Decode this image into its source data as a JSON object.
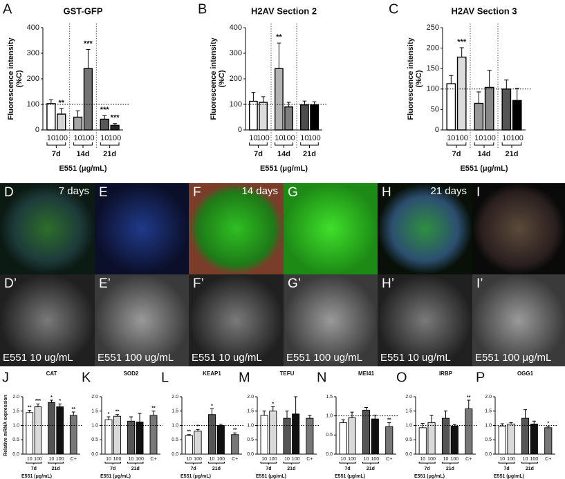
{
  "chart_data": [
    {
      "type": "bar",
      "panel": "A",
      "title": "GST-GFP",
      "ylabel": [
        "Fluorescence intensity",
        "(%C)"
      ],
      "xlabel": "E551 (μg/mL)",
      "ylim": [
        0,
        400
      ],
      "yticks": [
        0,
        100,
        200,
        300,
        400
      ],
      "reference_line": 100,
      "groups": [
        {
          "name": "7d",
          "categories": [
            "10",
            "100"
          ],
          "values": [
            103,
            62
          ],
          "errors": [
            15,
            22
          ],
          "colors": [
            "#ffffff",
            "#d4d4d4"
          ],
          "annotations": [
            null,
            "**"
          ]
        },
        {
          "name": "14d",
          "categories": [
            "10",
            "100"
          ],
          "values": [
            50,
            240
          ],
          "errors": [
            25,
            75
          ],
          "colors": [
            "#a6a6a6",
            "#737373"
          ],
          "annotations": [
            null,
            "***"
          ]
        },
        {
          "name": "21d",
          "categories": [
            "10",
            "100"
          ],
          "values": [
            42,
            18
          ],
          "errors": [
            14,
            7
          ],
          "colors": [
            "#595959",
            "#262626"
          ],
          "annotations": [
            "***",
            "***"
          ]
        }
      ]
    },
    {
      "type": "bar",
      "panel": "B",
      "title": "H2AV Section 2",
      "ylabel": [
        "Fluorescence intensity",
        "(%C)"
      ],
      "xlabel": "E551 (μg/mL)",
      "ylim": [
        0,
        400
      ],
      "yticks": [
        0,
        100,
        200,
        300,
        400
      ],
      "reference_line": 100,
      "groups": [
        {
          "name": "7d",
          "categories": [
            "10",
            "100"
          ],
          "values": [
            112,
            108
          ],
          "errors": [
            35,
            22
          ],
          "colors": [
            "#ffffff",
            "#dcdcdc"
          ]
        },
        {
          "name": "14d",
          "categories": [
            "10",
            "100"
          ],
          "values": [
            240,
            90
          ],
          "errors": [
            100,
            18
          ],
          "colors": [
            "#b3b3b3",
            "#808080"
          ],
          "annotations": [
            "**",
            null
          ]
        },
        {
          "name": "21d",
          "categories": [
            "10",
            "100"
          ],
          "values": [
            98,
            98
          ],
          "errors": [
            15,
            12
          ],
          "colors": [
            "#4d4d4d",
            "#000000"
          ]
        }
      ]
    },
    {
      "type": "bar",
      "panel": "C",
      "title": "H2AV Section 3",
      "ylabel": [
        "Fluorescence intensity",
        "(%C)"
      ],
      "xlabel": "E551 (μg/mL)",
      "ylim": [
        0,
        250
      ],
      "yticks": [
        0,
        50,
        100,
        150,
        200,
        250
      ],
      "reference_line": 100,
      "groups": [
        {
          "name": "7d",
          "categories": [
            "10",
            "100"
          ],
          "values": [
            113,
            178
          ],
          "errors": [
            20,
            23
          ],
          "colors": [
            "#ffffff",
            "#dcdcdc"
          ],
          "annotations": [
            null,
            "***"
          ]
        },
        {
          "name": "14d",
          "categories": [
            "10",
            "100"
          ],
          "values": [
            65,
            104
          ],
          "errors": [
            28,
            42
          ],
          "colors": [
            "#999999",
            "#888888"
          ]
        },
        {
          "name": "21d",
          "categories": [
            "10",
            "100"
          ],
          "values": [
            100,
            72
          ],
          "errors": [
            22,
            30
          ],
          "colors": [
            "#555555",
            "#000000"
          ]
        }
      ]
    },
    {
      "type": "bar",
      "panel": "J",
      "title": "CAT",
      "ylabel": [
        "Relative mRNA expression"
      ],
      "xlabel": "E551 (μg/mL)",
      "ylim": [
        0,
        2
      ],
      "yticks": [
        {
          "value": 0,
          "label": "0.0"
        },
        0.5,
        {
          "value": 1,
          "label": "1.0"
        },
        1.5,
        {
          "value": 2,
          "label": "2.0"
        }
      ],
      "reference_line": 1,
      "groups": [
        {
          "name": "7d",
          "categories": [
            "10",
            "100"
          ],
          "values": [
            1.45,
            1.65
          ],
          "errors": [
            0.08,
            0.1
          ],
          "colors": [
            "#ffffff",
            "#d9d9d9"
          ],
          "annotations": [
            "**",
            "***"
          ]
        },
        {
          "name": "21d",
          "categories": [
            "10",
            "100"
          ],
          "values": [
            1.8,
            1.65
          ],
          "errors": [
            0.08,
            0.1
          ],
          "colors": [
            "#555555",
            "#111111"
          ],
          "annotations": [
            "*",
            "*"
          ]
        },
        {
          "categories": [
            "C+"
          ],
          "values": [
            1.35
          ],
          "errors": [
            0.12
          ],
          "colors": [
            "#777777"
          ],
          "annotations": [
            "**"
          ]
        }
      ]
    },
    {
      "type": "bar",
      "panel": "K",
      "title": "SOD2",
      "xlabel": "E551 (μg/mL)",
      "ylim": [
        0,
        2
      ],
      "yticks": [
        {
          "value": 0,
          "label": "0.0"
        },
        0.5,
        {
          "value": 1,
          "label": "1.0"
        },
        1.5,
        {
          "value": 2,
          "label": "2.0"
        }
      ],
      "reference_line": 1,
      "groups": [
        {
          "name": "7d",
          "categories": [
            "10",
            "100"
          ],
          "values": [
            1.2,
            1.32
          ],
          "errors": [
            0.1,
            0.06
          ],
          "colors": [
            "#ffffff",
            "#d9d9d9"
          ],
          "annotations": [
            "*",
            "**"
          ]
        },
        {
          "name": "21d",
          "categories": [
            "10",
            "100"
          ],
          "values": [
            1.15,
            1.12
          ],
          "errors": [
            0.15,
            0.3
          ],
          "colors": [
            "#555555",
            "#111111"
          ]
        },
        {
          "categories": [
            "C+"
          ],
          "values": [
            1.35
          ],
          "errors": [
            0.15
          ],
          "colors": [
            "#777777"
          ],
          "annotations": [
            "**"
          ]
        }
      ]
    },
    {
      "type": "bar",
      "panel": "L",
      "title": "KEAP1",
      "xlabel": "E551 (μg/mL)",
      "ylim": [
        0,
        2
      ],
      "yticks": [
        {
          "value": 0,
          "label": "0.0"
        },
        0.5,
        {
          "value": 1,
          "label": "1.0"
        },
        1.5,
        {
          "value": 2,
          "label": "2.0"
        }
      ],
      "reference_line": 1,
      "groups": [
        {
          "name": "7d",
          "categories": [
            "10",
            "100"
          ],
          "values": [
            0.65,
            0.8
          ],
          "errors": [
            0.03,
            0.06
          ],
          "colors": [
            "#ffffff",
            "#d9d9d9"
          ],
          "annotations": [
            "**",
            "*"
          ]
        },
        {
          "name": "21d",
          "categories": [
            "10",
            "100"
          ],
          "values": [
            1.38,
            1.0
          ],
          "errors": [
            0.2,
            0.04
          ],
          "colors": [
            "#555555",
            "#111111"
          ],
          "annotations": [
            "*",
            null
          ]
        },
        {
          "categories": [
            "C+"
          ],
          "values": [
            0.68
          ],
          "errors": [
            0.06
          ],
          "colors": [
            "#777777"
          ],
          "annotations": [
            "**"
          ]
        }
      ]
    },
    {
      "type": "bar",
      "panel": "M",
      "title": "TEFU",
      "xlabel": "E551 (μg/mL)",
      "ylim": [
        0,
        2
      ],
      "yticks": [
        {
          "value": 0,
          "label": "0.0"
        },
        0.5,
        {
          "value": 1,
          "label": "1.0"
        },
        1.5,
        {
          "value": 2,
          "label": "2.0"
        }
      ],
      "reference_line": 1,
      "groups": [
        {
          "name": "7d",
          "categories": [
            "10",
            "100"
          ],
          "values": [
            1.35,
            1.5
          ],
          "errors": [
            0.15,
            0.15
          ],
          "colors": [
            "#ffffff",
            "#d9d9d9"
          ],
          "annotations": [
            null,
            "*"
          ]
        },
        {
          "name": "21d",
          "categories": [
            "10",
            "100"
          ],
          "values": [
            1.25,
            1.4
          ],
          "errors": [
            0.25,
            0.6
          ],
          "colors": [
            "#555555",
            "#111111"
          ]
        },
        {
          "categories": [
            "C+"
          ],
          "values": [
            1.25
          ],
          "errors": [
            0.1
          ],
          "colors": [
            "#777777"
          ]
        }
      ]
    },
    {
      "type": "bar",
      "panel": "N",
      "title": "MEI41",
      "xlabel": "E551 (μg/mL)",
      "ylim": [
        0,
        1.5
      ],
      "yticks": [
        {
          "value": 0,
          "label": "0.0"
        },
        0.5,
        {
          "value": 1,
          "label": "1.0"
        },
        1.5
      ],
      "reference_line": 1,
      "groups": [
        {
          "name": "7d",
          "categories": [
            "10",
            "100"
          ],
          "values": [
            0.82,
            0.95
          ],
          "errors": [
            0.08,
            0.15
          ],
          "colors": [
            "#ffffff",
            "#d9d9d9"
          ]
        },
        {
          "name": "21d",
          "categories": [
            "10",
            "100"
          ],
          "values": [
            1.15,
            0.92
          ],
          "errors": [
            0.07,
            0.1
          ],
          "colors": [
            "#555555",
            "#111111"
          ]
        },
        {
          "categories": [
            "C+"
          ],
          "values": [
            0.72
          ],
          "errors": [
            0.1
          ],
          "colors": [
            "#777777"
          ],
          "annotations": [
            "**"
          ]
        }
      ]
    },
    {
      "type": "bar",
      "panel": "O",
      "title": "IRBP",
      "xlabel": "E551 (μg/mL)",
      "ylim": [
        0,
        2
      ],
      "yticks": [
        {
          "value": 0,
          "label": "0.0"
        },
        0.5,
        {
          "value": 1,
          "label": "1.0"
        },
        1.5,
        {
          "value": 2,
          "label": "2.0"
        }
      ],
      "reference_line": 1,
      "groups": [
        {
          "name": "7d",
          "categories": [
            "10",
            "100"
          ],
          "values": [
            0.92,
            1.1
          ],
          "errors": [
            0.15,
            0.25
          ],
          "colors": [
            "#ffffff",
            "#d9d9d9"
          ]
        },
        {
          "name": "21d",
          "categories": [
            "10",
            "100"
          ],
          "values": [
            1.25,
            0.98
          ],
          "errors": [
            0.25,
            0.05
          ],
          "colors": [
            "#555555",
            "#111111"
          ]
        },
        {
          "categories": [
            "C+"
          ],
          "values": [
            1.58
          ],
          "errors": [
            0.3
          ],
          "colors": [
            "#777777"
          ],
          "annotations": [
            "**"
          ]
        }
      ]
    },
    {
      "type": "bar",
      "panel": "P",
      "title": "OGG1",
      "xlabel": "E551 (μg/mL)",
      "ylim": [
        0,
        2
      ],
      "yticks": [
        {
          "value": 0,
          "label": "0.0"
        },
        0.5,
        {
          "value": 1,
          "label": "1.0"
        },
        1.5,
        {
          "value": 2,
          "label": "2.0"
        }
      ],
      "reference_line": 1,
      "groups": [
        {
          "name": "7d",
          "categories": [
            "10",
            "100"
          ],
          "values": [
            0.98,
            1.05
          ],
          "errors": [
            0.08,
            0.05
          ],
          "colors": [
            "#ffffff",
            "#d9d9d9"
          ]
        },
        {
          "name": "21d",
          "categories": [
            "10",
            "100"
          ],
          "values": [
            1.25,
            1.05
          ],
          "errors": [
            0.3,
            0.1
          ],
          "colors": [
            "#555555",
            "#111111"
          ]
        },
        {
          "categories": [
            "C+"
          ],
          "values": [
            0.92
          ],
          "errors": [
            0.05
          ],
          "colors": [
            "#777777"
          ],
          "annotations": [
            "*"
          ]
        }
      ]
    }
  ],
  "micrographs": {
    "top_row": [
      {
        "label": "D",
        "time": "7 days"
      },
      {
        "label": "E"
      },
      {
        "label": "F",
        "time": "14 days"
      },
      {
        "label": "G"
      },
      {
        "label": "H",
        "time": "21 days"
      },
      {
        "label": "I"
      }
    ],
    "bottom_row": [
      {
        "label": "D’",
        "caption": "E551 10 ug/mL"
      },
      {
        "label": "E’",
        "caption": "E551 100 ug/mL"
      },
      {
        "label": "F’",
        "caption": "E551 10 ug/mL"
      },
      {
        "label": "G’",
        "caption": "E551 100 ug/mL"
      },
      {
        "label": "H’",
        "caption": "E551 10 ug/mL"
      },
      {
        "label": "I’",
        "caption": "E551 100 μg/mL"
      }
    ]
  }
}
